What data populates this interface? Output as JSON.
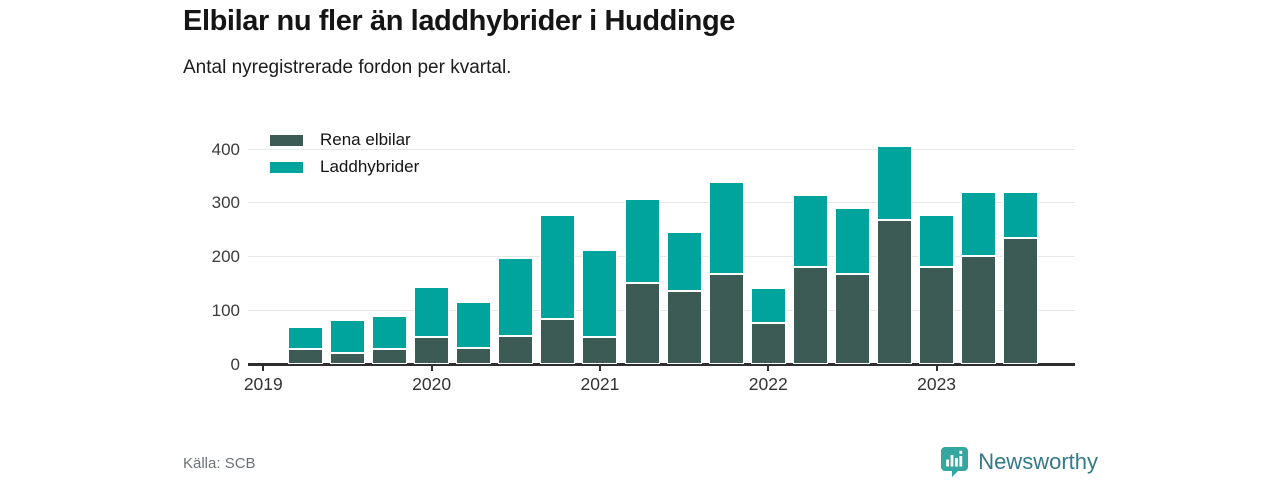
{
  "header": {
    "title": "Elbilar nu fler än laddhybrider i Huddinge",
    "subtitle": "Antal nyregistrerade fordon per kvartal."
  },
  "footer": {
    "source": "Källa: SCB",
    "brand": "Newsworthy"
  },
  "colors": {
    "axis": "#2e2e2e",
    "grid": "#e8e8e8",
    "brand_badge": "#34a7a1",
    "brand_text": "#35798a"
  },
  "chart_data": {
    "type": "bar",
    "stacked": true,
    "title": "Elbilar nu fler än laddhybrider i Huddinge",
    "subtitle": "Antal nyregistrerade fordon per kvartal.",
    "categories": [
      "2019 Q2",
      "2019 Q3",
      "2019 Q4",
      "2020 Q1",
      "2020 Q2",
      "2020 Q3",
      "2020 Q4",
      "2021 Q1",
      "2021 Q2",
      "2021 Q3",
      "2021 Q4",
      "2022 Q1",
      "2022 Q2",
      "2022 Q3",
      "2022 Q4",
      "2023 Q1",
      "2023 Q2",
      "2023 Q3"
    ],
    "series": [
      {
        "name": "Rena elbilar",
        "color": "#3b5b54",
        "values": [
          27,
          20,
          27,
          50,
          30,
          52,
          84,
          51,
          151,
          135,
          167,
          76,
          181,
          168,
          268,
          180,
          201,
          234
        ]
      },
      {
        "name": "Laddhybrider",
        "color": "#00a49c",
        "values": [
          42,
          61,
          62,
          93,
          86,
          146,
          193,
          161,
          156,
          110,
          171,
          66,
          134,
          122,
          138,
          97,
          119,
          86
        ]
      }
    ],
    "x_tick_labels": [
      "2019",
      "2020",
      "2021",
      "2022",
      "2023"
    ],
    "y_ticks": [
      0,
      100,
      200,
      300,
      400
    ],
    "ylim": [
      0,
      430
    ],
    "grid": true,
    "legend_position": "top-left"
  }
}
